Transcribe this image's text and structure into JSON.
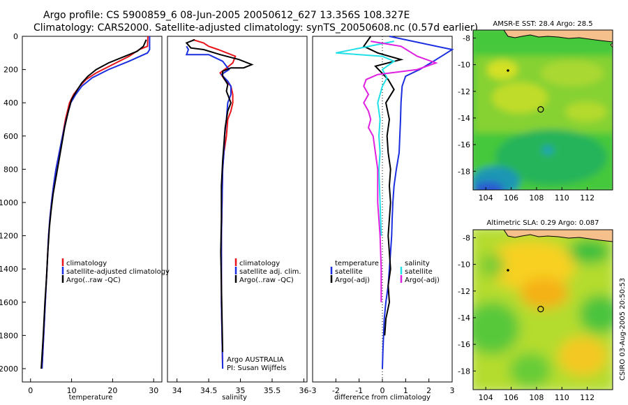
{
  "header": {
    "line1": "Argo profile: CS 5900859_6 08-Jun-2005 20050612_627 13.356S 108.327E",
    "line2": "Climatology: CARS2000. Satellite-adjusted climatology: synTS_20050608.nc (0.57d earlier)"
  },
  "side_stamp": "CSIRO 03-Aug-2005 20:50:53",
  "colors": {
    "red": "#e8141a",
    "blue": "#1a2ee0",
    "black": "#000000",
    "cyan": "#22e0e8",
    "magenta": "#e020e0",
    "land": "#f6c08c"
  },
  "chart_data": [
    {
      "type": "line",
      "title": "",
      "xlabel": "temperature",
      "ylabel": "",
      "xlim": [
        -2,
        32
      ],
      "ylim": [
        2080,
        0
      ],
      "xticks": [
        0,
        10,
        20,
        30
      ],
      "yticks": [
        0,
        200,
        400,
        600,
        800,
        1000,
        1200,
        1400,
        1600,
        1800,
        2000
      ],
      "legend": [
        "climatology",
        "satellite-adjusted climatology",
        "Argo(..raw -QC)"
      ],
      "legend_placement": "center-right",
      "series": [
        {
          "name": "climatology",
          "color": "red",
          "points": [
            [
              28.6,
              0
            ],
            [
              28.5,
              60
            ],
            [
              26.5,
              80
            ],
            [
              24,
              120
            ],
            [
              20,
              170
            ],
            [
              16,
              220
            ],
            [
              13.5,
              260
            ],
            [
              12,
              300
            ],
            [
              10.5,
              350
            ],
            [
              9.5,
              400
            ],
            [
              8.5,
              500
            ],
            [
              7.8,
              600
            ],
            [
              7,
              700
            ],
            [
              6.2,
              800
            ],
            [
              5.6,
              900
            ],
            [
              5.1,
              1000
            ],
            [
              4.7,
              1100
            ],
            [
              4.4,
              1200
            ],
            [
              4,
              1400
            ],
            [
              3.6,
              1600
            ],
            [
              3.2,
              1800
            ],
            [
              2.8,
              2000
            ]
          ]
        },
        {
          "name": "satellite-adjusted climatology",
          "color": "blue",
          "points": [
            [
              29,
              0
            ],
            [
              29,
              80
            ],
            [
              28.5,
              100
            ],
            [
              24,
              150
            ],
            [
              19,
              200
            ],
            [
              15,
              250
            ],
            [
              12.5,
              300
            ],
            [
              11,
              350
            ],
            [
              9.8,
              400
            ],
            [
              8.7,
              500
            ],
            [
              7.8,
              600
            ],
            [
              7,
              700
            ],
            [
              6.2,
              800
            ],
            [
              5.6,
              900
            ],
            [
              5.1,
              1000
            ],
            [
              4.7,
              1100
            ],
            [
              4.4,
              1200
            ],
            [
              4,
              1400
            ],
            [
              3.6,
              1600
            ],
            [
              3.2,
              1800
            ],
            [
              2.8,
              2000
            ]
          ]
        },
        {
          "name": "Argo(..raw -QC)",
          "color": "black",
          "points": [
            [
              28.2,
              20
            ],
            [
              27.5,
              60
            ],
            [
              26,
              90
            ],
            [
              23,
              120
            ],
            [
              19,
              160
            ],
            [
              16,
              200
            ],
            [
              14,
              240
            ],
            [
              12.5,
              280
            ],
            [
              11.2,
              330
            ],
            [
              10,
              380
            ],
            [
              9.2,
              450
            ],
            [
              8.3,
              550
            ],
            [
              7.6,
              650
            ],
            [
              6.9,
              750
            ],
            [
              6.2,
              850
            ],
            [
              5.5,
              950
            ],
            [
              5,
              1050
            ],
            [
              4.6,
              1150
            ],
            [
              4.2,
              1300
            ],
            [
              3.9,
              1450
            ],
            [
              3.5,
              1600
            ],
            [
              3.1,
              1800
            ],
            [
              2.6,
              2000
            ]
          ]
        }
      ]
    },
    {
      "type": "line",
      "title": "",
      "xlabel": "salinity",
      "ylabel": "",
      "xlim": [
        33.85,
        36.05
      ],
      "ylim": [
        2080,
        0
      ],
      "xticks": [
        34,
        34.5,
        35,
        35.5,
        36
      ],
      "xtick_labels": [
        "34",
        "34.5",
        "35",
        "35.5",
        "36"
      ],
      "yticks": [],
      "legend": [
        "climatology",
        "satellite adj. clim.",
        "Argo(..raw -QC)"
      ],
      "legend_placement": "center-right",
      "annotation": [
        "Argo AUSTRALIA",
        "PI: Susan Wijffels"
      ],
      "series": [
        {
          "name": "climatology",
          "color": "red",
          "points": [
            [
              34.25,
              20
            ],
            [
              34.42,
              40
            ],
            [
              34.5,
              60
            ],
            [
              34.65,
              80
            ],
            [
              34.92,
              120
            ],
            [
              34.88,
              160
            ],
            [
              34.75,
              200
            ],
            [
              34.68,
              220
            ],
            [
              34.75,
              260
            ],
            [
              34.85,
              300
            ],
            [
              34.88,
              350
            ],
            [
              34.88,
              400
            ],
            [
              34.85,
              450
            ],
            [
              34.8,
              500
            ],
            [
              34.78,
              600
            ],
            [
              34.74,
              700
            ],
            [
              34.72,
              800
            ],
            [
              34.71,
              1000
            ],
            [
              34.7,
              1200
            ],
            [
              34.7,
              1400
            ],
            [
              34.7,
              1600
            ],
            [
              34.71,
              1800
            ],
            [
              34.72,
              2000
            ]
          ]
        },
        {
          "name": "satellite adj. clim.",
          "color": "blue",
          "points": [
            [
              34.15,
              60
            ],
            [
              34.18,
              80
            ],
            [
              34.15,
              110
            ],
            [
              34.5,
              110
            ],
            [
              34.72,
              150
            ],
            [
              34.82,
              200
            ],
            [
              34.7,
              230
            ],
            [
              34.8,
              270
            ],
            [
              34.85,
              300
            ],
            [
              34.85,
              350
            ],
            [
              34.8,
              400
            ],
            [
              34.78,
              500
            ],
            [
              34.75,
              600
            ],
            [
              34.74,
              700
            ],
            [
              34.72,
              800
            ],
            [
              34.71,
              1000
            ],
            [
              34.7,
              1200
            ],
            [
              34.7,
              1400
            ],
            [
              34.7,
              1600
            ],
            [
              34.71,
              1800
            ],
            [
              34.72,
              2000
            ]
          ]
        },
        {
          "name": "Argo(..raw -QC)",
          "color": "black",
          "points": [
            [
              34.28,
              20
            ],
            [
              34.15,
              40
            ],
            [
              34.22,
              70
            ],
            [
              34.42,
              80
            ],
            [
              34.68,
              110
            ],
            [
              34.98,
              140
            ],
            [
              35.18,
              170
            ],
            [
              35.05,
              190
            ],
            [
              34.85,
              190
            ],
            [
              34.72,
              210
            ],
            [
              34.72,
              240
            ],
            [
              34.8,
              290
            ],
            [
              34.78,
              330
            ],
            [
              34.85,
              400
            ],
            [
              34.8,
              450
            ],
            [
              34.76,
              550
            ],
            [
              34.74,
              650
            ],
            [
              34.72,
              750
            ],
            [
              34.7,
              900
            ],
            [
              34.7,
              1100
            ],
            [
              34.69,
              1300
            ],
            [
              34.7,
              1500
            ],
            [
              34.71,
              1700
            ],
            [
              34.72,
              1900
            ]
          ]
        }
      ]
    },
    {
      "type": "line",
      "title": "",
      "xlabel": "difference from climatology",
      "ylabel": "",
      "xlim": [
        -3,
        3
      ],
      "ylim": [
        2080,
        0
      ],
      "xticks": [
        -3,
        -2,
        -1,
        0,
        1,
        2,
        3
      ],
      "yticks": [],
      "legend": [
        "temperature",
        "satellite",
        "Argo(-adj)",
        "salinity",
        "satellite",
        "Argo(-adj)"
      ],
      "legend_placement": "center",
      "series": [
        {
          "name": "temperature satellite",
          "color": "blue",
          "points": [
            [
              0.3,
              0
            ],
            [
              3,
              80
            ],
            [
              2.2,
              150
            ],
            [
              1.6,
              200
            ],
            [
              1.0,
              240
            ],
            [
              0.85,
              300
            ],
            [
              0.8,
              400
            ],
            [
              0.78,
              500
            ],
            [
              0.75,
              600
            ],
            [
              0.72,
              700
            ],
            [
              0.6,
              800
            ],
            [
              0.5,
              900
            ],
            [
              0.45,
              1000
            ],
            [
              0.42,
              1100
            ],
            [
              0.4,
              1200
            ],
            [
              0.35,
              1300
            ],
            [
              0.3,
              1400
            ],
            [
              0.25,
              1500
            ],
            [
              0.15,
              1600
            ],
            [
              0.08,
              1700
            ],
            [
              0.05,
              1800
            ],
            [
              0.02,
              1900
            ],
            [
              0,
              2000
            ]
          ]
        },
        {
          "name": "temperature Argo(-adj)",
          "color": "black",
          "points": [
            [
              -0.5,
              0
            ],
            [
              -0.8,
              60
            ],
            [
              -0.2,
              100
            ],
            [
              0.8,
              140
            ],
            [
              -0.3,
              180
            ],
            [
              0.25,
              260
            ],
            [
              0.5,
              320
            ],
            [
              0.15,
              400
            ],
            [
              0.3,
              500
            ],
            [
              0.2,
              600
            ],
            [
              0.25,
              700
            ],
            [
              0.35,
              800
            ],
            [
              0.3,
              900
            ],
            [
              0.35,
              1000
            ],
            [
              0.3,
              1100
            ],
            [
              0.25,
              1200
            ],
            [
              0.3,
              1300
            ],
            [
              0.35,
              1400
            ],
            [
              0.25,
              1500
            ],
            [
              0.3,
              1600
            ],
            [
              0.15,
              1700
            ],
            [
              0.1,
              1800
            ]
          ]
        },
        {
          "name": "salinity satellite",
          "color": "cyan",
          "points": [
            [
              0.5,
              30
            ],
            [
              -2,
              100
            ],
            [
              0,
              120
            ],
            [
              0.5,
              150
            ],
            [
              0,
              200
            ],
            [
              0.2,
              250
            ],
            [
              0,
              300
            ],
            [
              -0.2,
              400
            ],
            [
              -0.1,
              500
            ],
            [
              -0.15,
              600
            ],
            [
              -0.1,
              700
            ],
            [
              -0.15,
              800
            ],
            [
              -0.1,
              1000
            ],
            [
              -0.05,
              1200
            ]
          ]
        },
        {
          "name": "salinity Argo(-adj)",
          "color": "magenta",
          "points": [
            [
              -0.5,
              30
            ],
            [
              0.8,
              60
            ],
            [
              1.5,
              120
            ],
            [
              2.3,
              160
            ],
            [
              1.5,
              200
            ],
            [
              -0.2,
              230
            ],
            [
              -0.7,
              260
            ],
            [
              -0.8,
              300
            ],
            [
              -0.6,
              350
            ],
            [
              -0.8,
              400
            ],
            [
              -0.6,
              450
            ],
            [
              -0.5,
              500
            ],
            [
              -0.6,
              550
            ],
            [
              -0.4,
              600
            ],
            [
              -0.3,
              700
            ],
            [
              -0.2,
              800
            ],
            [
              -0.2,
              1000
            ],
            [
              -0.1,
              1200
            ],
            [
              -0.05,
              1400
            ],
            [
              -0.05,
              1600
            ]
          ]
        }
      ]
    },
    {
      "type": "heatmap",
      "title": "AMSR-E SST: 28.4 Argo: 28.5",
      "xlabel": "",
      "ylabel": "",
      "xlim": [
        103,
        114
      ],
      "ylim": [
        -19.4,
        -7.4
      ],
      "xticks": [
        104,
        106,
        108,
        110,
        112
      ],
      "yticks": [
        -8,
        -10,
        -12,
        -14,
        -16,
        -18
      ],
      "argo_position": [
        108.327,
        -13.356
      ]
    },
    {
      "type": "heatmap",
      "title": "Altimetric SLA: 0.29 Argo: 0.087",
      "xlabel": "",
      "ylabel": "",
      "xlim": [
        103,
        114
      ],
      "ylim": [
        -19.4,
        -7.4
      ],
      "xticks": [
        104,
        106,
        108,
        110,
        112
      ],
      "yticks": [
        -8,
        -10,
        -12,
        -14,
        -16,
        -18
      ],
      "argo_position": [
        108.327,
        -13.356
      ]
    }
  ]
}
